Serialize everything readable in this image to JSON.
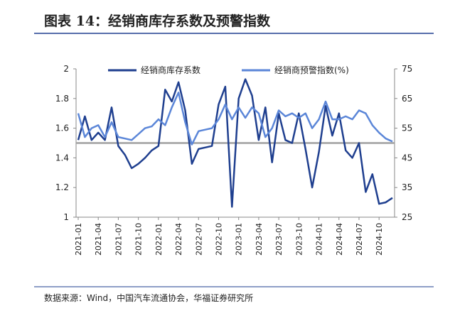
{
  "chart_data": {
    "type": "line",
    "title": "图表 14：经销商库存系数及预警指数",
    "source": "数据来源：Wind，中国汽车流通协会，华福证券研究所",
    "categories": [
      "2021-01",
      null,
      null,
      "2021-04",
      null,
      null,
      "2021-07",
      null,
      null,
      "2021-10",
      null,
      null,
      "2022-01",
      null,
      null,
      "2022-04",
      null,
      null,
      "2022-07",
      null,
      null,
      "2022-10",
      null,
      null,
      "2023-01",
      null,
      null,
      "2023-04",
      null,
      null,
      "2023-07",
      null,
      null,
      "2023-10",
      null,
      null,
      "2024-01",
      null,
      null,
      "2024-04",
      null,
      null,
      "2024-07",
      null,
      null,
      "2024-10",
      null,
      null
    ],
    "series": [
      {
        "name": "经销商库存系数",
        "color": "#1f3f8f",
        "values": [
          1.52,
          1.68,
          1.52,
          1.57,
          1.52,
          1.74,
          1.48,
          1.42,
          1.33,
          1.36,
          1.4,
          1.45,
          1.48,
          1.86,
          1.78,
          1.91,
          1.72,
          1.36,
          1.46,
          1.47,
          1.48,
          1.76,
          1.88,
          1.07,
          1.8,
          1.93,
          1.82,
          1.52,
          1.74,
          1.37,
          1.7,
          1.52,
          1.5,
          1.7,
          1.46,
          1.2,
          1.44,
          1.75,
          1.55,
          1.7,
          1.45,
          1.4,
          1.5,
          1.17,
          1.29,
          1.09,
          1.1,
          1.13
        ]
      },
      {
        "name": "经销商预警指数(%)",
        "color": "#5b86d8",
        "axis": "y2",
        "values": [
          60,
          52,
          55,
          56,
          52,
          57,
          52,
          51.5,
          51,
          53,
          55,
          55.6,
          58,
          56,
          62,
          67,
          57,
          49.5,
          54,
          54.5,
          55,
          58,
          63,
          58,
          62,
          58.5,
          62,
          60,
          52,
          55,
          61,
          59,
          60,
          58.5,
          60,
          55,
          58,
          64,
          58,
          58,
          59,
          58,
          61,
          60,
          56,
          53.5,
          51.5,
          50.5
        ]
      }
    ],
    "reference_line": {
      "axis": "y2",
      "value": 50,
      "color": "#a0a0a0"
    },
    "ylim": [
      1,
      2
    ],
    "yticks": [
      1,
      1.2,
      1.4,
      1.6,
      1.8,
      2
    ],
    "y2lim": [
      25,
      75
    ],
    "y2ticks": [
      25,
      35,
      45,
      55,
      65,
      75
    ]
  }
}
